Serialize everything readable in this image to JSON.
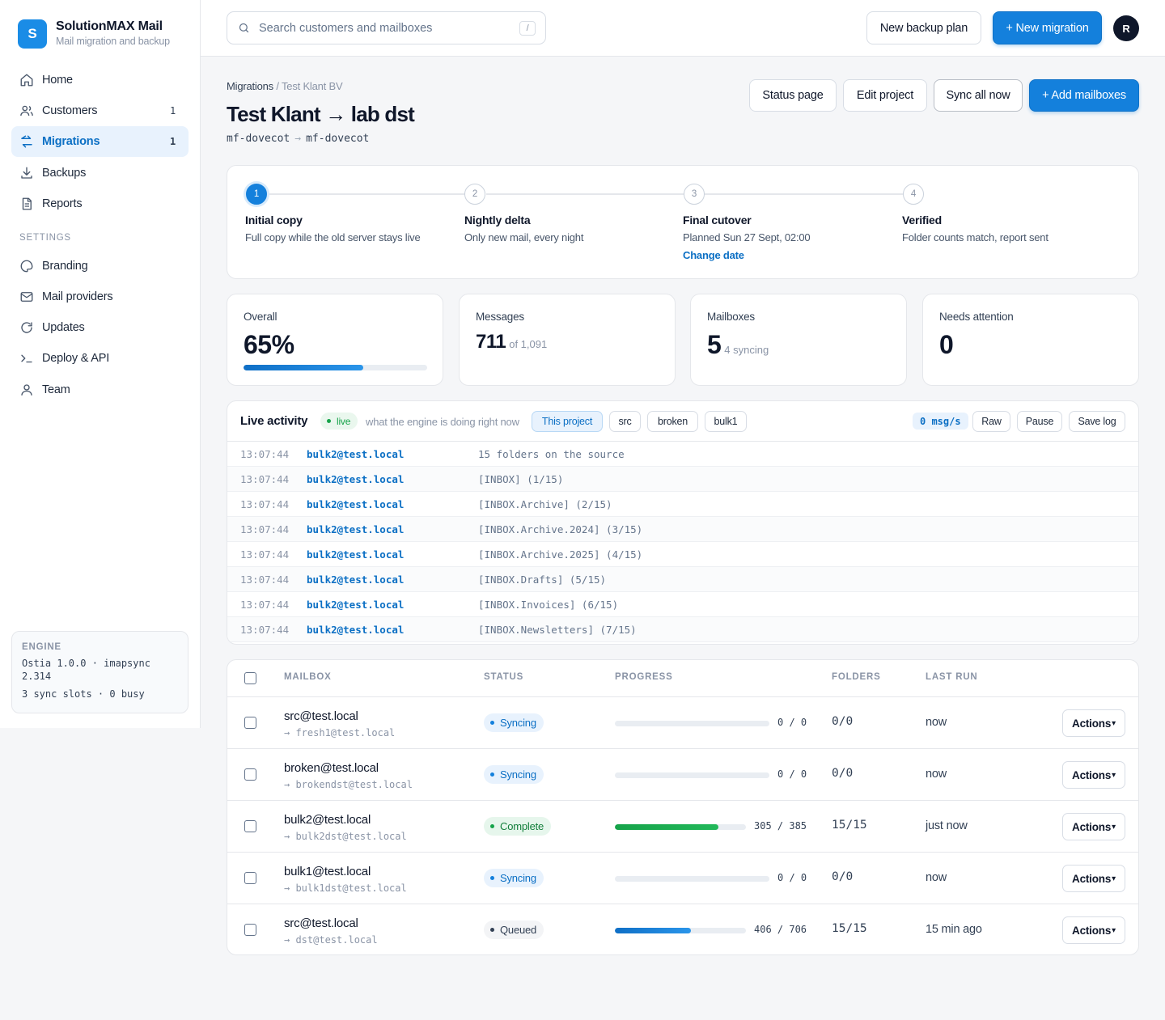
{
  "brand": {
    "name": "SolutionMAX Mail",
    "subtitle": "Mail migration and backup",
    "logo_letter": "S"
  },
  "sidebar": {
    "items": [
      {
        "label": "Home",
        "icon": "home-icon"
      },
      {
        "label": "Customers",
        "icon": "users-icon",
        "count": "1"
      },
      {
        "label": "Migrations",
        "icon": "migrate-icon",
        "count": "1",
        "active": true
      },
      {
        "label": "Backups",
        "icon": "download-icon"
      },
      {
        "label": "Reports",
        "icon": "document-icon"
      }
    ],
    "settings_label": "SETTINGS",
    "settings_items": [
      {
        "label": "Branding",
        "icon": "palette-icon"
      },
      {
        "label": "Mail providers",
        "icon": "mail-icon"
      },
      {
        "label": "Updates",
        "icon": "refresh-icon"
      },
      {
        "label": "Deploy & API",
        "icon": "terminal-icon"
      },
      {
        "label": "Team",
        "icon": "user-icon"
      }
    ],
    "engine": {
      "label": "ENGINE",
      "version": "Ostia 1.0.0 · imapsync 2.314",
      "slots": "3 sync slots · 0 busy"
    }
  },
  "topbar": {
    "search_placeholder": "Search customers and mailboxes",
    "search_shortcut": "/",
    "new_backup_label": "New backup plan",
    "new_migration_label": "+ New migration",
    "avatar_initial": "R"
  },
  "header": {
    "breadcrumb_root": "Migrations",
    "breadcrumb_sep": "/",
    "breadcrumb_current": "Test Klant BV",
    "title": "Test Klant → lab dst",
    "route_src": "mf-dovecot",
    "route_arrow": "→",
    "route_dst": "mf-dovecot",
    "buttons": {
      "status_page": "Status page",
      "edit_project": "Edit project",
      "sync_all": "Sync all now",
      "add_mailboxes": "+ Add mailboxes"
    }
  },
  "steps": [
    {
      "num": "1",
      "title": "Initial copy",
      "desc": "Full copy while the old server stays live",
      "done": true
    },
    {
      "num": "2",
      "title": "Nightly delta",
      "desc": "Only new mail, every night",
      "done": false
    },
    {
      "num": "3",
      "title": "Final cutover",
      "desc": "Planned Sun 27 Sept, 02:00",
      "link": "Change date",
      "done": false
    },
    {
      "num": "4",
      "title": "Verified",
      "desc": "Folder counts match, report sent",
      "done": false
    }
  ],
  "stats": {
    "overall": {
      "label": "Overall",
      "value": "65%",
      "progress": 0.65
    },
    "messages": {
      "label": "Messages",
      "value": "711",
      "sub": "of 1,091"
    },
    "mailboxes": {
      "label": "Mailboxes",
      "value": "5",
      "sub": "4 syncing"
    },
    "attention": {
      "label": "Needs attention",
      "value": "0"
    }
  },
  "activity": {
    "title": "Live activity",
    "live_label": "live",
    "hint": "what the engine is doing right now",
    "filters": [
      "This project",
      "src",
      "broken",
      "bulk1"
    ],
    "rate": "0 msg/s",
    "controls": {
      "raw": "Raw",
      "pause": "Pause",
      "save": "Save log"
    },
    "log": [
      {
        "time": "13:07:44",
        "mailbox": "bulk2@test.local",
        "msg": "15 folders on the source"
      },
      {
        "time": "13:07:44",
        "mailbox": "bulk2@test.local",
        "msg": "[INBOX] (1/15)"
      },
      {
        "time": "13:07:44",
        "mailbox": "bulk2@test.local",
        "msg": "[INBOX.Archive] (2/15)"
      },
      {
        "time": "13:07:44",
        "mailbox": "bulk2@test.local",
        "msg": "[INBOX.Archive.2024] (3/15)"
      },
      {
        "time": "13:07:44",
        "mailbox": "bulk2@test.local",
        "msg": "[INBOX.Archive.2025] (4/15)"
      },
      {
        "time": "13:07:44",
        "mailbox": "bulk2@test.local",
        "msg": "[INBOX.Drafts] (5/15)"
      },
      {
        "time": "13:07:44",
        "mailbox": "bulk2@test.local",
        "msg": "[INBOX.Invoices] (6/15)"
      },
      {
        "time": "13:07:44",
        "mailbox": "bulk2@test.local",
        "msg": "[INBOX.Newsletters] (7/15)"
      }
    ]
  },
  "table": {
    "headers": {
      "mailbox": "MAILBOX",
      "status": "STATUS",
      "progress": "PROGRESS",
      "folders": "FOLDERS",
      "last_run": "LAST RUN"
    },
    "actions_label": "Actions",
    "actions_caret": "▾",
    "rows": [
      {
        "src": "src@test.local",
        "dst": "→ fresh1@test.local",
        "status": "Syncing",
        "status_kind": "syncing",
        "progress_text": "0 / 0",
        "progress": 0,
        "folders": "0/0",
        "last_run": "now"
      },
      {
        "src": "broken@test.local",
        "dst": "→ brokendst@test.local",
        "status": "Syncing",
        "status_kind": "syncing",
        "progress_text": "0 / 0",
        "progress": 0,
        "folders": "0/0",
        "last_run": "now"
      },
      {
        "src": "bulk2@test.local",
        "dst": "→ bulk2dst@test.local",
        "status": "Complete",
        "status_kind": "complete",
        "progress_text": "305 / 385",
        "progress": 0.79,
        "folders": "15/15",
        "last_run": "just now"
      },
      {
        "src": "bulk1@test.local",
        "dst": "→ bulk1dst@test.local",
        "status": "Syncing",
        "status_kind": "syncing",
        "progress_text": "0 / 0",
        "progress": 0,
        "folders": "0/0",
        "last_run": "now"
      },
      {
        "src": "src@test.local",
        "dst": "→ dst@test.local",
        "status": "Queued",
        "status_kind": "queued",
        "progress_text": "406 / 706",
        "progress": 0.58,
        "folders": "15/15",
        "last_run": "15 min ago"
      }
    ]
  },
  "colors": {
    "accent": "#1480dc",
    "complete": "#16a34a",
    "queued_bar": "#1480dc"
  }
}
